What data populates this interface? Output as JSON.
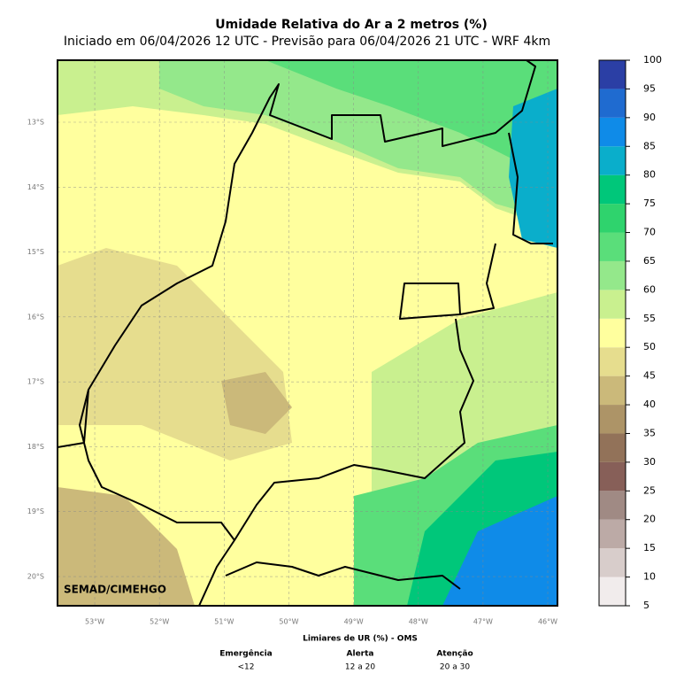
{
  "map": {
    "title": "Umidade Relativa do Ar a 2 metros (%)",
    "subtitle": "Iniciado em 06/04/2026 12 UTC - Previsão para 06/04/2026 21 UTC - WRF 4km",
    "lat_range": [
      -20.45,
      -12.045
    ],
    "lon_range": [
      -53.575,
      -45.85
    ],
    "lat_ticks": [
      {
        "value": -13,
        "label": "13°S"
      },
      {
        "value": -14,
        "label": "14°S"
      },
      {
        "value": -15,
        "label": "15°S"
      },
      {
        "value": -16,
        "label": "16°S"
      },
      {
        "value": -17,
        "label": "17°S"
      },
      {
        "value": -18,
        "label": "18°S"
      },
      {
        "value": -19,
        "label": "19°S"
      },
      {
        "value": -20,
        "label": "20°S"
      }
    ],
    "lon_ticks": [
      {
        "value": -53,
        "label": "53°W"
      },
      {
        "value": -52,
        "label": "52°W"
      },
      {
        "value": -51,
        "label": "51°W"
      },
      {
        "value": -50,
        "label": "50°W"
      },
      {
        "value": -49,
        "label": "49°W"
      },
      {
        "value": -48,
        "label": "48°W"
      },
      {
        "value": -47,
        "label": "47°W"
      },
      {
        "value": -46,
        "label": "46°W"
      }
    ],
    "watermark": "SEMAD/CIMEHGO"
  },
  "colorbar": {
    "lim": [
      5,
      100
    ],
    "ticks": [
      5,
      10,
      15,
      20,
      25,
      30,
      35,
      40,
      45,
      50,
      55,
      60,
      65,
      70,
      75,
      80,
      85,
      90,
      95,
      100
    ],
    "colors": [
      "#f1ecec",
      "#d8cdcb",
      "#bcaaa6",
      "#a08a84",
      "#875f58",
      "#927259",
      "#ad9467",
      "#cbb97a",
      "#e6dd8e",
      "#ffff9e",
      "#c9f08f",
      "#94e88b",
      "#5ade7a",
      "#2fd36d",
      "#00c77a",
      "#0aaecb",
      "#0f8be8",
      "#1f6bd0",
      "#2b3fa5"
    ]
  },
  "footer": {
    "title": "Limiares de UR (%) - OMS",
    "columns": [
      {
        "name": "Emergência",
        "range": "<12"
      },
      {
        "name": "Alerta",
        "range": "12 a 20"
      },
      {
        "name": "Atenção",
        "range": "20 a 30"
      }
    ]
  }
}
